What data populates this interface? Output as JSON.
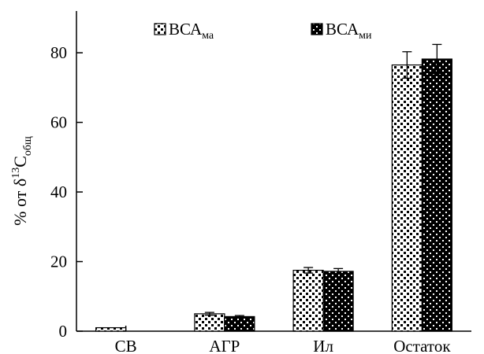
{
  "chart_data": {
    "type": "bar",
    "categories": [
      "СВ",
      "АГР",
      "Ил",
      "Остаток"
    ],
    "series": [
      {
        "name": "ВСА",
        "name_sub": "ма",
        "pattern": "light-dotted",
        "values": [
          1.0,
          5.0,
          17.5,
          76.5
        ],
        "errors": [
          0.0,
          0.4,
          0.8,
          3.8
        ]
      },
      {
        "name": "ВСА",
        "name_sub": "ми",
        "pattern": "dark-dotted",
        "values": [
          0.0,
          4.2,
          17.2,
          78.2
        ],
        "errors": [
          0.0,
          0.3,
          0.8,
          4.2
        ]
      }
    ],
    "ylim": [
      0,
      92
    ],
    "yticks": [
      0,
      20,
      40,
      60,
      80
    ],
    "ylabel": {
      "prefix": "% от δ",
      "sup": "13",
      "main": "C",
      "sub": "общ"
    },
    "xlabel": "",
    "grid": false,
    "legend_position": "top"
  }
}
